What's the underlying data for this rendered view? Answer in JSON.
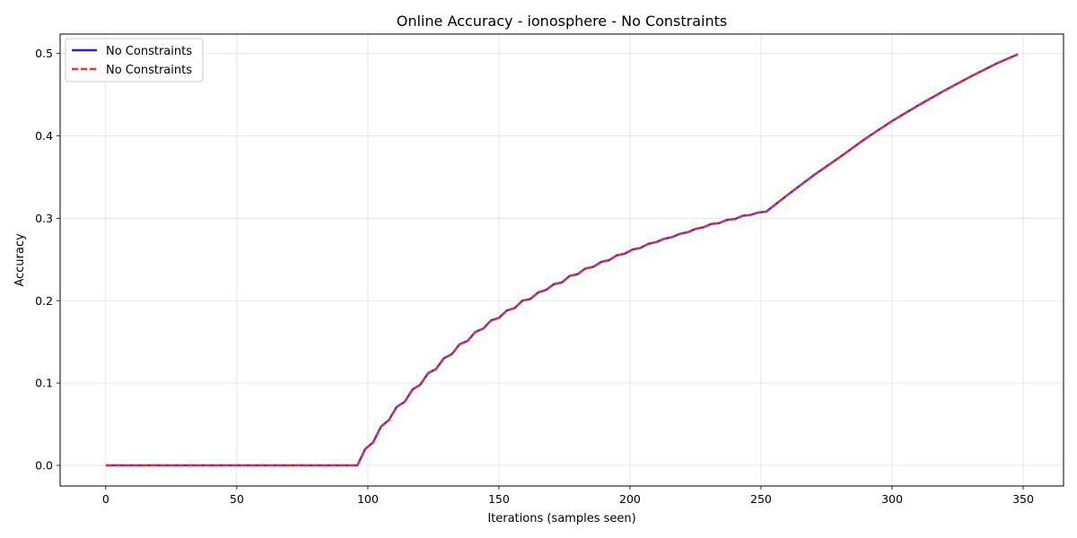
{
  "chart_data": {
    "type": "line",
    "title": "Online Accuracy - ionosphere - No Constraints",
    "xlabel": "Iterations (samples seen)",
    "ylabel": "Accuracy",
    "xlim": [
      -17.4,
      365.4
    ],
    "ylim": [
      -0.025,
      0.5235
    ],
    "xticks": [
      0,
      50,
      100,
      150,
      200,
      250,
      300,
      350
    ],
    "xtick_labels": [
      "0",
      "50",
      "100",
      "150",
      "200",
      "250",
      "300",
      "350"
    ],
    "yticks": [
      0.0,
      0.1,
      0.2,
      0.3,
      0.4,
      0.5
    ],
    "ytick_labels": [
      "0.0",
      "0.1",
      "0.2",
      "0.3",
      "0.4",
      "0.5"
    ],
    "grid": true,
    "legend_position": "upper-left",
    "series": [
      {
        "name": "No Constraints",
        "color": "#2222dd",
        "style": "solid",
        "x": [
          0,
          96,
          99,
          102,
          105,
          108,
          111,
          114,
          117,
          120,
          123,
          126,
          129,
          132,
          135,
          138,
          141,
          144,
          147,
          150,
          153,
          156,
          159,
          162,
          165,
          168,
          171,
          174,
          177,
          180,
          183,
          186,
          189,
          192,
          195,
          198,
          201,
          204,
          207,
          210,
          213,
          216,
          219,
          222,
          225,
          228,
          231,
          234,
          237,
          240,
          243,
          246,
          249,
          252,
          260,
          270,
          280,
          290,
          300,
          310,
          320,
          330,
          340,
          348
        ],
        "y": [
          0.0,
          0.0,
          0.02,
          0.028,
          0.047,
          0.055,
          0.071,
          0.077,
          0.092,
          0.098,
          0.112,
          0.117,
          0.13,
          0.135,
          0.147,
          0.151,
          0.162,
          0.166,
          0.176,
          0.179,
          0.188,
          0.191,
          0.2,
          0.202,
          0.21,
          0.213,
          0.22,
          0.222,
          0.23,
          0.232,
          0.239,
          0.241,
          0.247,
          0.249,
          0.255,
          0.257,
          0.262,
          0.264,
          0.269,
          0.271,
          0.275,
          0.277,
          0.281,
          0.283,
          0.287,
          0.289,
          0.293,
          0.294,
          0.298,
          0.299,
          0.303,
          0.304,
          0.307,
          0.308,
          0.328,
          0.352,
          0.374,
          0.397,
          0.418,
          0.437,
          0.455,
          0.472,
          0.488,
          0.499
        ]
      },
      {
        "name": "No Constraints",
        "color": "#ee3333",
        "style": "dashed",
        "x": [
          0,
          96,
          99,
          102,
          105,
          108,
          111,
          114,
          117,
          120,
          123,
          126,
          129,
          132,
          135,
          138,
          141,
          144,
          147,
          150,
          153,
          156,
          159,
          162,
          165,
          168,
          171,
          174,
          177,
          180,
          183,
          186,
          189,
          192,
          195,
          198,
          201,
          204,
          207,
          210,
          213,
          216,
          219,
          222,
          225,
          228,
          231,
          234,
          237,
          240,
          243,
          246,
          249,
          252,
          260,
          270,
          280,
          290,
          300,
          310,
          320,
          330,
          340,
          348
        ],
        "y": [
          0.0,
          0.0,
          0.02,
          0.028,
          0.047,
          0.055,
          0.071,
          0.077,
          0.092,
          0.098,
          0.112,
          0.117,
          0.13,
          0.135,
          0.147,
          0.151,
          0.162,
          0.166,
          0.176,
          0.179,
          0.188,
          0.191,
          0.2,
          0.202,
          0.21,
          0.213,
          0.22,
          0.222,
          0.23,
          0.232,
          0.239,
          0.241,
          0.247,
          0.249,
          0.255,
          0.257,
          0.262,
          0.264,
          0.269,
          0.271,
          0.275,
          0.277,
          0.281,
          0.283,
          0.287,
          0.289,
          0.293,
          0.294,
          0.298,
          0.299,
          0.303,
          0.304,
          0.307,
          0.308,
          0.328,
          0.352,
          0.374,
          0.397,
          0.418,
          0.437,
          0.455,
          0.472,
          0.488,
          0.499
        ]
      }
    ]
  }
}
